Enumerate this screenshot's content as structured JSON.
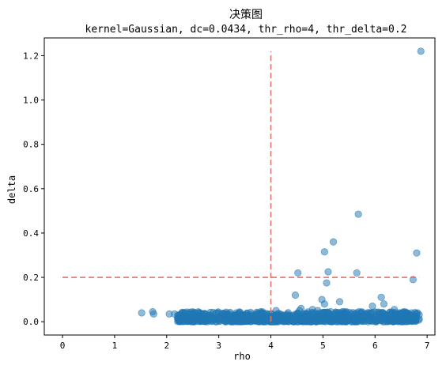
{
  "chart_data": {
    "type": "scatter",
    "title": "决策图",
    "subtitle": "kernel=Gaussian, dc=0.0434, thr_rho=4, thr_delta=0.2",
    "xlabel": "rho",
    "ylabel": "delta",
    "xlim": [
      -0.35,
      7.15
    ],
    "ylim": [
      -0.06,
      1.28
    ],
    "xticks": [
      "0",
      "1",
      "2",
      "3",
      "4",
      "5",
      "6",
      "7"
    ],
    "yticks": [
      "0.0",
      "0.2",
      "0.4",
      "0.6",
      "0.8",
      "1.0",
      "1.2"
    ],
    "grid": false,
    "point_color": "#1f77b4",
    "threshold_color": "#e0736a",
    "thresholds": {
      "rho": 4,
      "delta": 0.2,
      "vertical_y_range": [
        0,
        1.22
      ],
      "horizontal_x_range": [
        0,
        6.85
      ]
    },
    "series": [
      {
        "points": [
          [
            6.88,
            1.22
          ],
          [
            5.68,
            0.485
          ],
          [
            6.8,
            0.31
          ],
          [
            5.2,
            0.36
          ],
          [
            5.03,
            0.315
          ],
          [
            5.1,
            0.225
          ],
          [
            4.52,
            0.22
          ],
          [
            5.65,
            0.22
          ],
          [
            5.07,
            0.175
          ],
          [
            6.73,
            0.19
          ],
          [
            4.47,
            0.12
          ],
          [
            6.12,
            0.11
          ],
          [
            4.98,
            0.1
          ],
          [
            6.17,
            0.08
          ],
          [
            5.32,
            0.09
          ],
          [
            5.95,
            0.07
          ],
          [
            5.03,
            0.08
          ],
          [
            6.37,
            0.055
          ],
          [
            4.58,
            0.06
          ],
          [
            4.8,
            0.055
          ],
          [
            1.52,
            0.04
          ],
          [
            1.73,
            0.045
          ],
          [
            1.75,
            0.035
          ],
          [
            2.05,
            0.035
          ],
          [
            2.15,
            0.035
          ],
          [
            2.25,
            0.03
          ],
          [
            2.45,
            0.035
          ],
          [
            4.1,
            0.05
          ],
          [
            4.55,
            0.05
          ],
          [
            4.9,
            0.05
          ],
          [
            5.15,
            0.045
          ],
          [
            5.85,
            0.04
          ],
          [
            6.5,
            0.035
          ],
          [
            6.7,
            0.04
          ]
        ],
        "dense_band": {
          "x_range": [
            2.2,
            6.85
          ],
          "y_range": [
            0.0,
            0.045
          ],
          "approx_count": 900
        }
      }
    ]
  }
}
